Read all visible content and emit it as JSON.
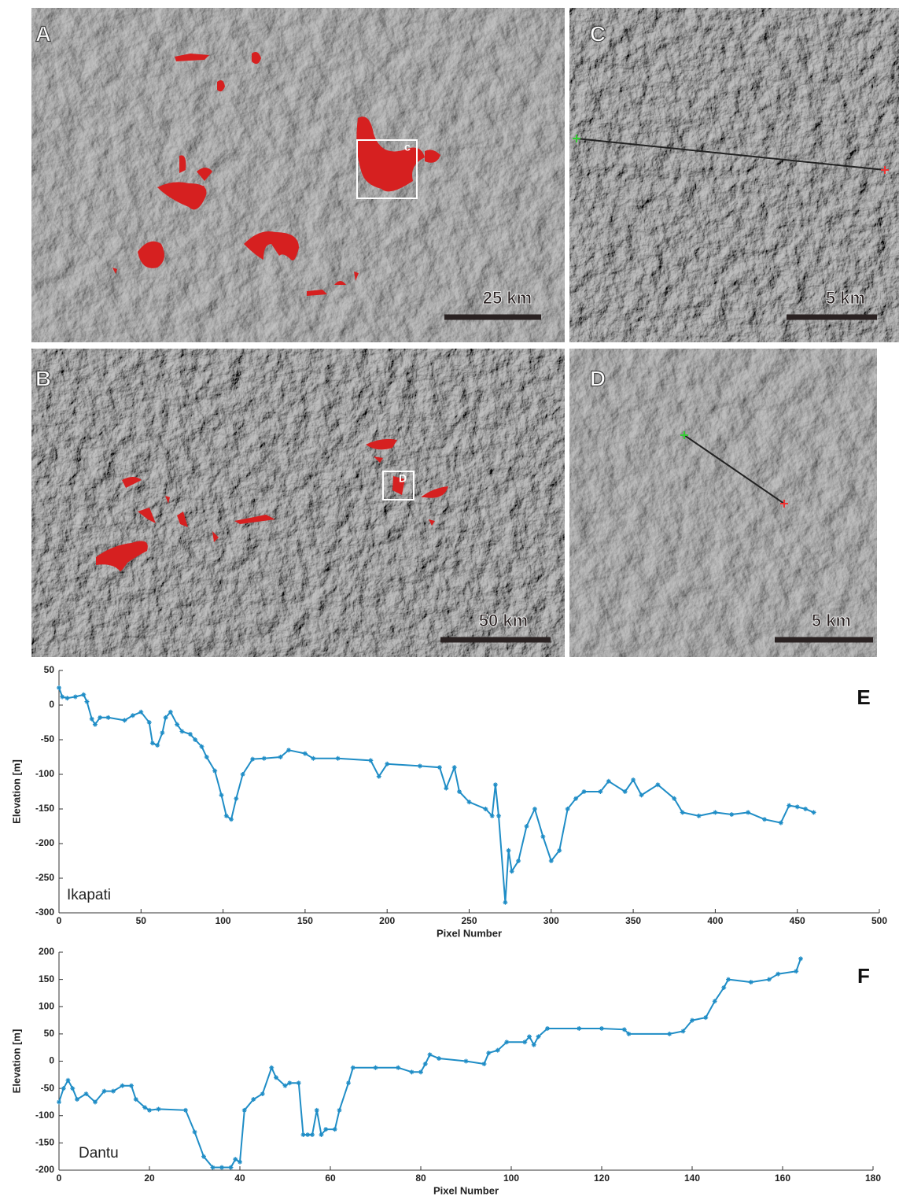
{
  "panels": [
    {
      "label": "A",
      "scale_bar": "25 km",
      "inset_label": "c"
    },
    {
      "label": "B",
      "scale_bar": "50 km",
      "inset_label": "D"
    },
    {
      "label": "C",
      "scale_bar": "5 km"
    },
    {
      "label": "D",
      "scale_bar": "5 km"
    }
  ],
  "chart_data": [
    {
      "type": "line",
      "title": "E",
      "annotation": "Ikapati",
      "x_label": "Pixel Number",
      "y_label": "Elevation [m]",
      "x": [
        0,
        2,
        5,
        10,
        15,
        17,
        20,
        22,
        25,
        30,
        40,
        45,
        50,
        55,
        57,
        60,
        63,
        65,
        68,
        72,
        75,
        80,
        83,
        87,
        90,
        95,
        99,
        102,
        105,
        108,
        112,
        118,
        125,
        135,
        140,
        150,
        155,
        170,
        190,
        195,
        200,
        220,
        232,
        236,
        241,
        244,
        250,
        260,
        264,
        266,
        268,
        272,
        274,
        276,
        280,
        285,
        290,
        295,
        300,
        305,
        310,
        315,
        320,
        330,
        335,
        345,
        350,
        355,
        365,
        375,
        380,
        390,
        400,
        410,
        420,
        430,
        440,
        445,
        450,
        455,
        460
      ],
      "series": [
        {
          "color": "#1f8dc6",
          "values": [
            25,
            12,
            10,
            12,
            15,
            5,
            -20,
            -28,
            -18,
            -18,
            -22,
            -15,
            -10,
            -25,
            -55,
            -58,
            -40,
            -18,
            -10,
            -28,
            -38,
            -42,
            -50,
            -60,
            -75,
            -95,
            -130,
            -160,
            -165,
            -135,
            -100,
            -78,
            -77,
            -75,
            -65,
            -70,
            -77,
            -77,
            -80,
            -103,
            -85,
            -88,
            -90,
            -120,
            -90,
            -125,
            -140,
            -150,
            -160,
            -115,
            -160,
            -285,
            -210,
            -240,
            -225,
            -175,
            -150,
            -190,
            -225,
            -210,
            -150,
            -135,
            -125,
            -125,
            -110,
            -125,
            -108,
            -130,
            -115,
            -135,
            -155,
            -160,
            -155,
            -158,
            -155,
            -165,
            -170,
            -145,
            -147,
            -150,
            -155
          ]
        }
      ],
      "xlim": [
        0,
        500
      ],
      "ylim": [
        -300,
        50
      ],
      "xticks": [
        0,
        50,
        100,
        150,
        200,
        250,
        300,
        350,
        400,
        450,
        500
      ],
      "yticks": [
        -300,
        -250,
        -200,
        -150,
        -100,
        -50,
        0,
        50
      ]
    },
    {
      "type": "line",
      "title": "F",
      "annotation": "Dantu",
      "x_label": "Pixel Number",
      "y_label": "Elevation [m]",
      "x": [
        0,
        1,
        2,
        3,
        4,
        6,
        8,
        10,
        12,
        14,
        16,
        17,
        19,
        20,
        22,
        28,
        30,
        32,
        34,
        36,
        38,
        39,
        40,
        41,
        43,
        45,
        47,
        48,
        50,
        51,
        53,
        54,
        55,
        56,
        57,
        58,
        59,
        61,
        62,
        64,
        65,
        70,
        75,
        78,
        80,
        81,
        82,
        84,
        90,
        94,
        95,
        97,
        99,
        103,
        104,
        105,
        106,
        108,
        115,
        120,
        125,
        126,
        135,
        138,
        140,
        143,
        145,
        147,
        148,
        153,
        157,
        159,
        163,
        164
      ],
      "series": [
        {
          "color": "#1f8dc6",
          "values": [
            -75,
            -50,
            -35,
            -50,
            -70,
            -60,
            -75,
            -55,
            -55,
            -45,
            -45,
            -70,
            -85,
            -90,
            -88,
            -90,
            -130,
            -175,
            -195,
            -195,
            -195,
            -180,
            -185,
            -90,
            -70,
            -60,
            -12,
            -30,
            -45,
            -40,
            -40,
            -135,
            -135,
            -135,
            -90,
            -135,
            -125,
            -125,
            -90,
            -40,
            -12,
            -12,
            -12,
            -20,
            -20,
            -5,
            12,
            5,
            0,
            -5,
            15,
            20,
            35,
            35,
            45,
            30,
            45,
            60,
            60,
            60,
            58,
            50,
            50,
            55,
            75,
            80,
            110,
            135,
            150,
            145,
            150,
            160,
            165,
            188
          ]
        }
      ],
      "xlim": [
        0,
        180
      ],
      "ylim": [
        -200,
        200
      ],
      "xticks": [
        0,
        20,
        40,
        60,
        80,
        100,
        120,
        140,
        160,
        180
      ],
      "yticks": [
        -200,
        -150,
        -100,
        -50,
        0,
        50,
        100,
        150,
        200
      ]
    }
  ]
}
